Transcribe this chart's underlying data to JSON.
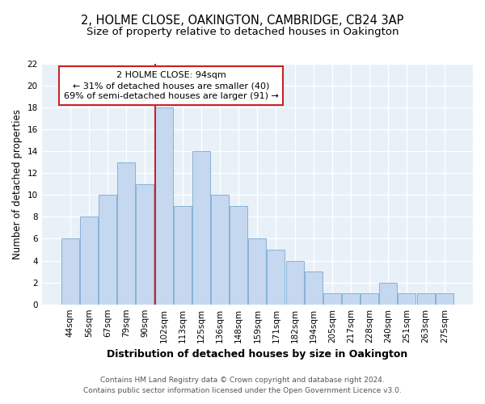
{
  "title": "2, HOLME CLOSE, OAKINGTON, CAMBRIDGE, CB24 3AP",
  "subtitle": "Size of property relative to detached houses in Oakington",
  "xlabel": "Distribution of detached houses by size in Oakington",
  "ylabel": "Number of detached properties",
  "bar_labels": [
    "44sqm",
    "56sqm",
    "67sqm",
    "79sqm",
    "90sqm",
    "102sqm",
    "113sqm",
    "125sqm",
    "136sqm",
    "148sqm",
    "159sqm",
    "171sqm",
    "182sqm",
    "194sqm",
    "205sqm",
    "217sqm",
    "228sqm",
    "240sqm",
    "251sqm",
    "263sqm",
    "275sqm"
  ],
  "bar_values": [
    6,
    8,
    10,
    13,
    11,
    18,
    9,
    14,
    10,
    9,
    6,
    5,
    4,
    3,
    1,
    1,
    1,
    2,
    1,
    1,
    1
  ],
  "bar_color": "#c5d8f0",
  "bar_edge_color": "#7aaad0",
  "fig_bg_color": "#ffffff",
  "plot_bg_color": "#e8f0f8",
  "grid_color": "#ffffff",
  "annotation_line1": "2 HOLME CLOSE: 94sqm",
  "annotation_line2": "← 31% of detached houses are smaller (40)",
  "annotation_line3": "69% of semi-detached houses are larger (91) →",
  "annotation_box_color": "#ffffff",
  "annotation_box_edge_color": "#cc2222",
  "red_line_x": 4.55,
  "ylim": [
    0,
    22
  ],
  "yticks": [
    0,
    2,
    4,
    6,
    8,
    10,
    12,
    14,
    16,
    18,
    20,
    22
  ],
  "footer_line1": "Contains HM Land Registry data © Crown copyright and database right 2024.",
  "footer_line2": "Contains public sector information licensed under the Open Government Licence v3.0.",
  "title_fontsize": 10.5,
  "subtitle_fontsize": 9.5,
  "xlabel_fontsize": 9,
  "ylabel_fontsize": 8.5,
  "tick_fontsize": 7.5,
  "annotation_fontsize": 8,
  "footer_fontsize": 6.5
}
